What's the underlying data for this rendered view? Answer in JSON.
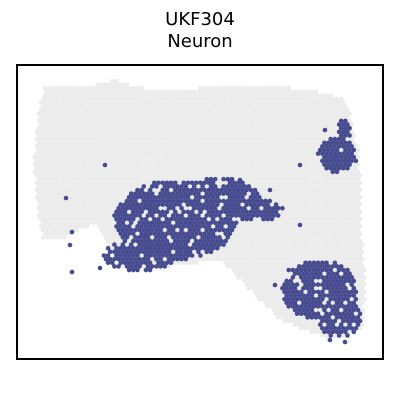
{
  "chart_data": {
    "type": "scatter",
    "title_lines": [
      "UKF304",
      "Neuron"
    ],
    "xlabel": "",
    "ylabel": "",
    "grid": false,
    "legend": "none",
    "series": [
      {
        "role": "background-spots",
        "color": "#ebebeb"
      },
      {
        "role": "highlighted-spots",
        "color": "#464b8f"
      }
    ]
  }
}
